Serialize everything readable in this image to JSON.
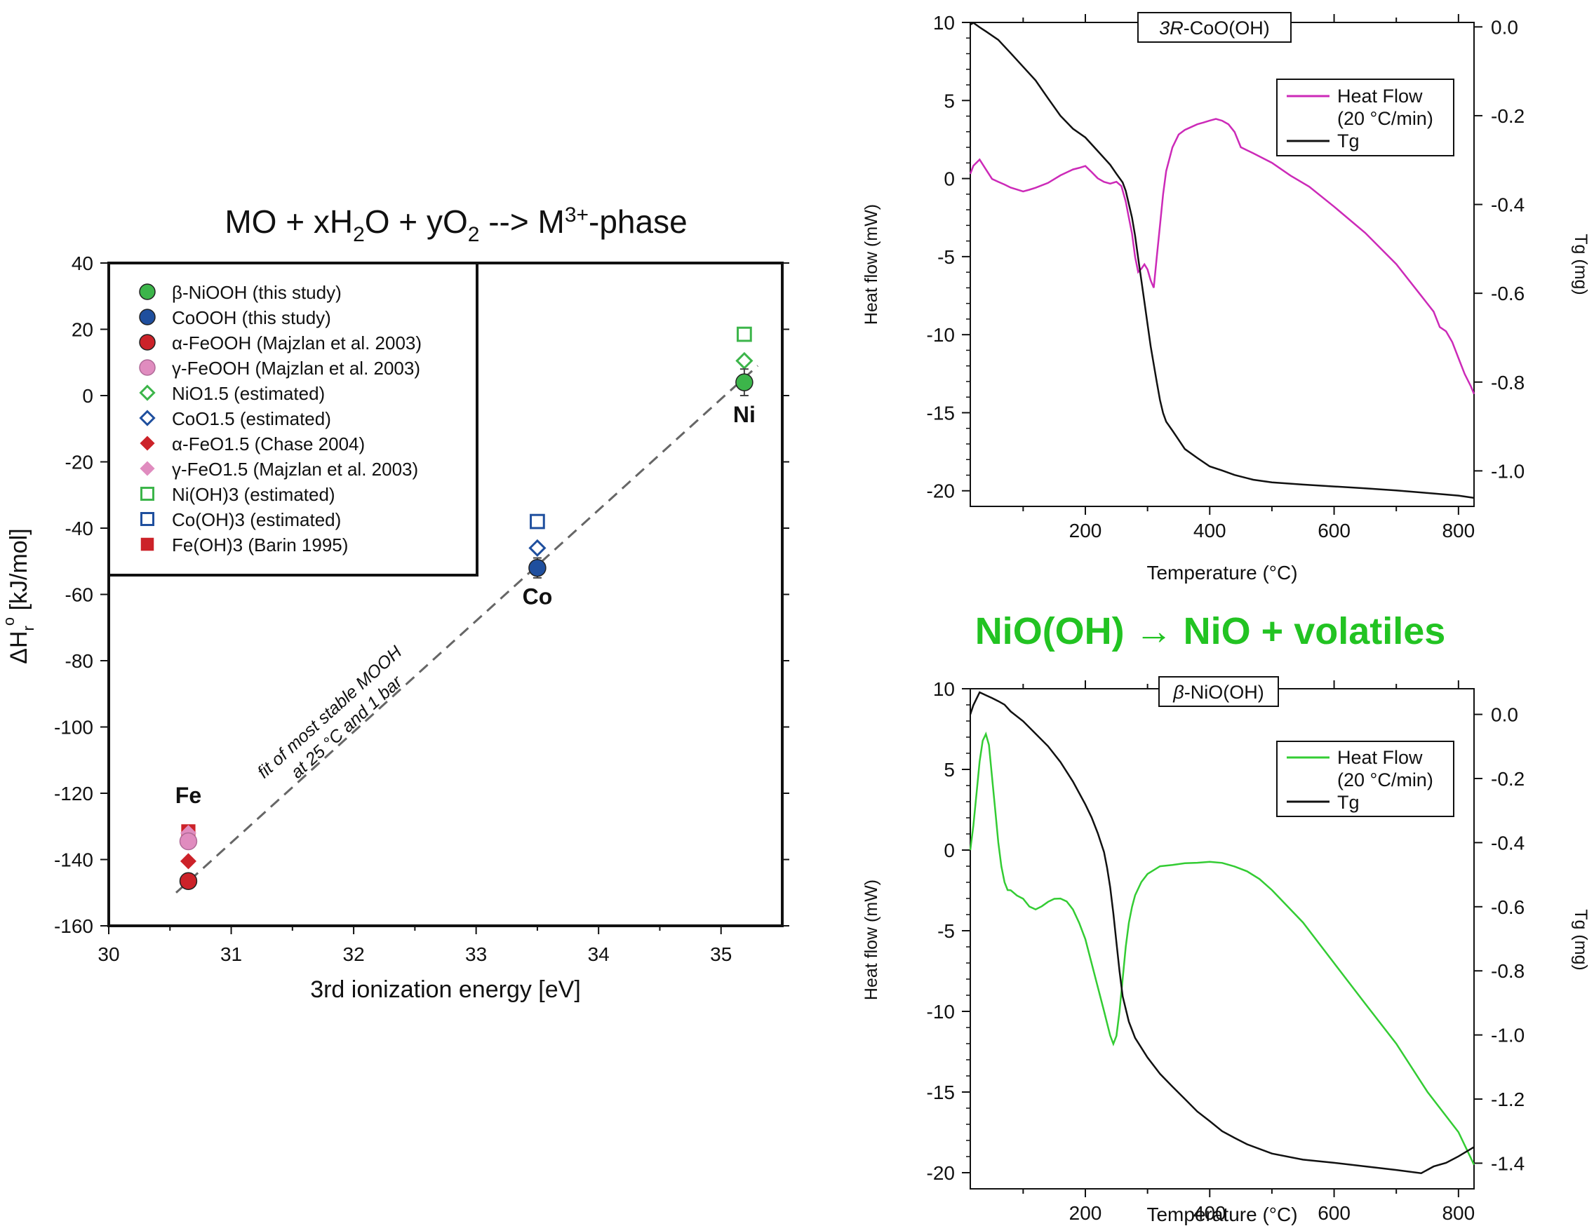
{
  "colors": {
    "ni_green": "#3cb54a",
    "co_blue": "#1f4f9e",
    "fe_red": "#cc2229",
    "fe_pink": "#e08cbf",
    "dsc_magenta": "#cc2ab8",
    "dsc_green": "#33cc33",
    "tg_black": "#111111",
    "header_green": "#22c322",
    "fit_gray": "#666666"
  },
  "center": {
    "text": "NiO(OH) → NiO + volatiles"
  },
  "chart_data": [
    {
      "type": "scatter",
      "title": "MO + xH₂O + yO₂ --> M³⁺-phase",
      "title_parts": {
        "a": "MO + xH",
        "b": "2",
        "c": "O + yO",
        "d": "2",
        "e": " --> M",
        "f": "3+",
        "g": "-phase"
      },
      "xlabel": "3rd ionization energy [eV]",
      "ylabel": "ΔH",
      "ylabel_parts": {
        "a": "ΔH",
        "b": "r",
        "c": "o",
        "d": " [kJ/mol]"
      },
      "xlim": [
        30,
        35.5
      ],
      "ylim": [
        -160,
        40
      ],
      "x_ticks": [
        30,
        31,
        32,
        33,
        34,
        35
      ],
      "y_ticks": [
        40,
        20,
        0,
        -20,
        -40,
        -60,
        -80,
        -100,
        -120,
        -140,
        -160
      ],
      "grid": false,
      "legend_position": "top-left",
      "series": [
        {
          "name": "β-NiOOH (this study)",
          "marker": "circle",
          "filled": true,
          "color": "#3cb54a",
          "points": [
            {
              "x": 35.19,
              "y": 4,
              "err": 4
            }
          ]
        },
        {
          "name": "CoOOH (this study)",
          "marker": "circle",
          "filled": true,
          "color": "#1f4f9e",
          "points": [
            {
              "x": 33.5,
              "y": -52,
              "err": 3
            }
          ]
        },
        {
          "name": "α-FeOOH (Majzlan et al. 2003)",
          "marker": "circle",
          "filled": true,
          "color": "#cc2229",
          "points": [
            {
              "x": 30.65,
              "y": -146.5
            }
          ]
        },
        {
          "name": "γ-FeOOH (Majzlan et al. 2003)",
          "marker": "circle",
          "filled": true,
          "color": "#e08cbf",
          "points": [
            {
              "x": 30.65,
              "y": -134.5
            }
          ]
        },
        {
          "name": "NiO1.5 (estimated)",
          "marker": "diamond",
          "filled": false,
          "color": "#3cb54a",
          "points": [
            {
              "x": 35.19,
              "y": 10.5
            }
          ]
        },
        {
          "name": "CoO1.5 (estimated)",
          "marker": "diamond",
          "filled": false,
          "color": "#1f4f9e",
          "points": [
            {
              "x": 33.5,
              "y": -46
            }
          ]
        },
        {
          "name": "α-FeO1.5 (Chase 2004)",
          "marker": "diamond",
          "filled": true,
          "color": "#cc2229",
          "points": [
            {
              "x": 30.65,
              "y": -140.5
            }
          ]
        },
        {
          "name": "γ-FeO1.5 (Majzlan et al. 2003)",
          "marker": "diamond",
          "filled": true,
          "color": "#e08cbf",
          "points": [
            {
              "x": 30.65,
              "y": -132
            }
          ]
        },
        {
          "name": "Ni(OH)3 (estimated)",
          "marker": "square",
          "filled": false,
          "color": "#3cb54a",
          "points": [
            {
              "x": 35.19,
              "y": 18.5
            }
          ]
        },
        {
          "name": "Co(OH)3 (estimated)",
          "marker": "square",
          "filled": false,
          "color": "#1f4f9e",
          "points": [
            {
              "x": 33.5,
              "y": -38
            }
          ]
        },
        {
          "name": "Fe(OH)3 (Barin 1995)",
          "marker": "square",
          "filled": true,
          "color": "#cc2229",
          "points": [
            {
              "x": 30.65,
              "y": -131.5
            }
          ]
        }
      ],
      "fit_line": {
        "x": [
          30.55,
          35.3
        ],
        "y": [
          -150,
          9
        ]
      },
      "annotations": [
        {
          "text": "Ni",
          "x": 35.19,
          "y": -8
        },
        {
          "text": "Co",
          "x": 33.5,
          "y": -63
        },
        {
          "text": "Fe",
          "x": 30.65,
          "y": -123
        }
      ],
      "fit_label": [
        "fit of most stable MOOH",
        "at 25 °C and 1 bar"
      ]
    },
    {
      "type": "line",
      "panel_label_italic": "3R",
      "panel_label_rest": "-CoO(OH)",
      "xlabel": "Temperature (°C)",
      "ylabel": "Heat flow (mW)",
      "y2label": "Tg (mg)",
      "xlim": [
        15,
        825
      ],
      "ylim": [
        -21,
        10
      ],
      "y2lim": [
        -1.08,
        0.01
      ],
      "x_ticks": [
        200,
        400,
        600,
        800
      ],
      "y_ticks": [
        10,
        5,
        0,
        -5,
        -10,
        -15,
        -20
      ],
      "y2_ticks": [
        0.0,
        -0.2,
        -0.4,
        -0.6,
        -0.8,
        -1.0
      ],
      "y2_tick_labels": [
        "0.0",
        "-0.2",
        "-0.4",
        "-0.6",
        "-0.8",
        "-1.0"
      ],
      "legend_position": "top-right",
      "legend": [
        "Heat Flow",
        "(20 °C/min)",
        "Tg"
      ],
      "series": [
        {
          "name": "Heat Flow",
          "axis": "left",
          "color": "#cc2ab8",
          "x": [
            15,
            20,
            30,
            40,
            50,
            60,
            70,
            80,
            90,
            100,
            110,
            120,
            140,
            160,
            180,
            190,
            200,
            210,
            220,
            230,
            240,
            250,
            258,
            265,
            270,
            275,
            280,
            285,
            290,
            295,
            300,
            305,
            310,
            315,
            320,
            325,
            330,
            340,
            350,
            360,
            370,
            380,
            390,
            400,
            410,
            420,
            430,
            440,
            450,
            470,
            500,
            530,
            560,
            600,
            650,
            700,
            740,
            760,
            770,
            780,
            790,
            800,
            810,
            820,
            825
          ],
          "y": [
            0.3,
            0.8,
            1.2,
            0.6,
            0.0,
            -0.2,
            -0.4,
            -0.6,
            -0.7,
            -0.8,
            -0.7,
            -0.6,
            -0.3,
            0.2,
            0.6,
            0.7,
            0.8,
            0.4,
            0.0,
            -0.2,
            -0.3,
            -0.2,
            -0.5,
            -1.5,
            -2.5,
            -3.5,
            -5.0,
            -6.0,
            -5.8,
            -5.5,
            -5.8,
            -6.5,
            -7.0,
            -5.0,
            -3.0,
            -1.0,
            0.5,
            2.0,
            2.8,
            3.1,
            3.3,
            3.5,
            3.6,
            3.7,
            3.8,
            3.7,
            3.5,
            3.0,
            2.0,
            1.6,
            1.0,
            0.2,
            -0.5,
            -1.8,
            -3.5,
            -5.5,
            -7.5,
            -8.5,
            -9.5,
            -9.8,
            -10.5,
            -11.5,
            -12.5,
            -13.3,
            -13.8
          ]
        },
        {
          "name": "Tg",
          "axis": "right",
          "color": "#111111",
          "x": [
            15,
            20,
            30,
            40,
            60,
            80,
            100,
            120,
            140,
            160,
            180,
            200,
            220,
            240,
            250,
            260,
            265,
            270,
            275,
            280,
            285,
            290,
            295,
            300,
            305,
            310,
            315,
            320,
            325,
            330,
            340,
            350,
            360,
            380,
            400,
            420,
            440,
            470,
            500,
            550,
            600,
            650,
            700,
            750,
            800,
            825
          ],
          "y": [
            0.005,
            0.01,
            0.0,
            -0.01,
            -0.03,
            -0.06,
            -0.09,
            -0.12,
            -0.16,
            -0.2,
            -0.23,
            -0.25,
            -0.28,
            -0.31,
            -0.33,
            -0.35,
            -0.37,
            -0.4,
            -0.43,
            -0.47,
            -0.52,
            -0.57,
            -0.62,
            -0.67,
            -0.72,
            -0.76,
            -0.8,
            -0.84,
            -0.87,
            -0.89,
            -0.91,
            -0.93,
            -0.95,
            -0.97,
            -0.99,
            -1.0,
            -1.01,
            -1.02,
            -1.025,
            -1.03,
            -1.035,
            -1.04,
            -1.045,
            -1.05,
            -1.055,
            -1.06
          ]
        }
      ]
    },
    {
      "type": "line",
      "panel_label_italic": "β",
      "panel_label_rest": "-NiO(OH)",
      "xlabel": "Temperature (°C)",
      "ylabel": "Heat flow (mW)",
      "y2label": "Tg (mg)",
      "xlim": [
        15,
        825
      ],
      "ylim": [
        -21,
        10
      ],
      "y2lim": [
        -1.48,
        0.08
      ],
      "x_ticks": [
        200,
        400,
        600,
        800
      ],
      "y_ticks": [
        10,
        5,
        0,
        -5,
        -10,
        -15,
        -20
      ],
      "y2_ticks": [
        0.0,
        -0.2,
        -0.4,
        -0.6,
        -0.8,
        -1.0,
        -1.2,
        -1.4
      ],
      "y2_tick_labels": [
        "0.0",
        "-0.2",
        "-0.4",
        "-0.6",
        "-0.8",
        "-1.0",
        "-1.2",
        "-1.4"
      ],
      "legend_position": "top-right",
      "legend": [
        "Heat Flow",
        "(20 °C/min)",
        "Tg"
      ],
      "series": [
        {
          "name": "Heat Flow",
          "axis": "left",
          "color": "#33cc33",
          "x": [
            15,
            20,
            25,
            30,
            35,
            40,
            45,
            50,
            55,
            60,
            65,
            70,
            75,
            80,
            90,
            100,
            110,
            120,
            130,
            140,
            150,
            160,
            170,
            180,
            190,
            200,
            210,
            220,
            230,
            240,
            245,
            250,
            255,
            260,
            265,
            270,
            275,
            280,
            290,
            300,
            320,
            340,
            360,
            380,
            400,
            420,
            440,
            460,
            480,
            500,
            550,
            600,
            650,
            700,
            750,
            800,
            825
          ],
          "y": [
            0.0,
            1.5,
            3.5,
            5.5,
            6.8,
            7.2,
            6.5,
            4.5,
            2.5,
            0.5,
            -1.0,
            -2.0,
            -2.5,
            -2.5,
            -2.8,
            -3.0,
            -3.5,
            -3.7,
            -3.5,
            -3.2,
            -3.0,
            -3.0,
            -3.2,
            -3.7,
            -4.5,
            -5.5,
            -7.0,
            -8.5,
            -10.0,
            -11.5,
            -12.0,
            -11.5,
            -10.0,
            -8.0,
            -6.0,
            -4.5,
            -3.5,
            -2.8,
            -2.0,
            -1.5,
            -1.0,
            -0.9,
            -0.8,
            -0.8,
            -0.75,
            -0.8,
            -1.0,
            -1.3,
            -1.8,
            -2.5,
            -4.5,
            -7.0,
            -9.5,
            -12.0,
            -15.0,
            -17.5,
            -19.5
          ]
        },
        {
          "name": "Tg",
          "axis": "right",
          "color": "#111111",
          "x": [
            15,
            20,
            30,
            40,
            50,
            60,
            70,
            80,
            100,
            120,
            140,
            160,
            180,
            200,
            210,
            220,
            230,
            235,
            240,
            245,
            250,
            255,
            260,
            270,
            280,
            300,
            320,
            340,
            360,
            380,
            400,
            420,
            440,
            460,
            500,
            550,
            600,
            650,
            700,
            740,
            760,
            780,
            800,
            825
          ],
          "y": [
            0.0,
            0.03,
            0.07,
            0.06,
            0.05,
            0.04,
            0.03,
            0.01,
            -0.02,
            -0.06,
            -0.1,
            -0.15,
            -0.21,
            -0.28,
            -0.32,
            -0.37,
            -0.43,
            -0.48,
            -0.54,
            -0.62,
            -0.71,
            -0.8,
            -0.88,
            -0.96,
            -1.01,
            -1.07,
            -1.12,
            -1.16,
            -1.2,
            -1.24,
            -1.27,
            -1.3,
            -1.32,
            -1.34,
            -1.37,
            -1.39,
            -1.4,
            -1.41,
            -1.42,
            -1.43,
            -1.41,
            -1.4,
            -1.38,
            -1.35
          ]
        }
      ]
    }
  ]
}
